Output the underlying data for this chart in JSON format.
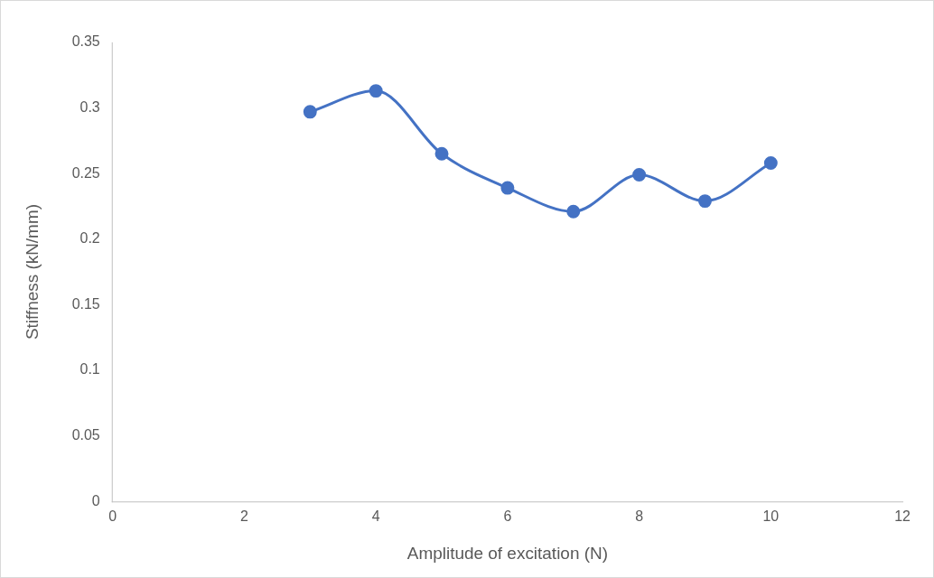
{
  "chart_data": {
    "type": "line",
    "xlabel": "Amplitude of excitation (N)",
    "ylabel": "Stiffness (kN/mm)",
    "x": [
      3,
      4,
      5,
      6,
      7,
      8,
      9,
      10
    ],
    "series": [
      {
        "color": "#4472c4",
        "values": [
          0.297,
          0.313,
          0.265,
          0.239,
          0.221,
          0.249,
          0.229,
          0.258
        ]
      }
    ],
    "xlim": [
      0,
      12
    ],
    "xticks": [
      0,
      2,
      4,
      6,
      8,
      10,
      12
    ],
    "ylim": [
      0,
      0.35
    ],
    "yticks": [
      0,
      0.05,
      0.1,
      0.15,
      0.2,
      0.25,
      0.3,
      0.35
    ],
    "grid": false,
    "legend": false,
    "marker": "circle",
    "line_style": "solid"
  }
}
